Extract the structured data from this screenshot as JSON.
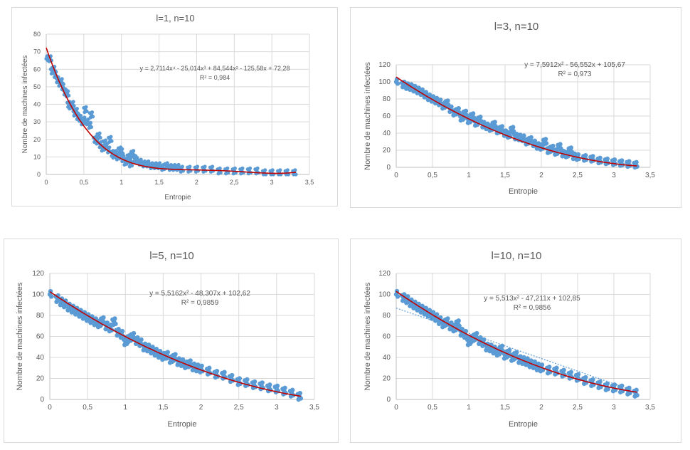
{
  "chart_data": [
    {
      "type": "scatter",
      "title": "l=1, n=10",
      "xlabel": "Entropie",
      "ylabel": "Nombre de machines infectées",
      "xlim": [
        0,
        3.5
      ],
      "ylim": [
        0,
        80
      ],
      "xticks": [
        "0",
        "0,5",
        "1",
        "1,5",
        "2",
        "2,5",
        "3",
        "3,5"
      ],
      "yticks": [
        "0",
        "10",
        "20",
        "30",
        "40",
        "50",
        "60",
        "70",
        "80"
      ],
      "trend_equation": "y = 2,7114x⁴ - 25,014x³ + 84,544x² - 125,58x + 72,28",
      "trend_r2": "R² = 0,984",
      "trend_coeffs": [
        72.28,
        -125.58,
        84.544,
        -25.014,
        2.7114
      ],
      "grid": true,
      "series": [
        {
          "x": [
            0,
            0.05,
            0.08,
            0.1,
            0.12,
            0.15,
            0.18,
            0.2,
            0.22,
            0.25,
            0.28,
            0.3,
            0.32,
            0.35,
            0.38,
            0.4,
            0.42,
            0.45,
            0.48,
            0.5,
            0.52,
            0.55,
            0.58,
            0.6,
            0.65,
            0.68,
            0.7,
            0.72,
            0.75,
            0.78,
            0.8,
            0.83,
            0.85,
            0.88,
            0.9,
            0.92,
            0.95,
            0.98,
            1.0,
            1.02,
            1.05,
            1.08,
            1.1,
            1.12,
            1.15,
            1.18,
            1.2,
            1.25,
            1.3,
            1.35,
            1.4,
            1.45,
            1.5,
            1.55,
            1.6,
            1.65,
            1.7,
            1.75,
            1.8,
            1.9,
            2.0,
            2.1,
            2.2,
            2.3,
            2.4,
            2.5,
            2.6,
            2.7,
            2.8,
            2.9,
            3.0,
            3.1,
            3.2,
            3.3
          ],
          "y": [
            66,
            66,
            59,
            60,
            57,
            54,
            52,
            53,
            50,
            47,
            46,
            40,
            39,
            40,
            35,
            36,
            33,
            32,
            30,
            31,
            37,
            30,
            28,
            34,
            20,
            19,
            22,
            17,
            15,
            18,
            16,
            14,
            20,
            12,
            11,
            12,
            10,
            14,
            13,
            9,
            7,
            8,
            10,
            6,
            12,
            9,
            8,
            7,
            6,
            6,
            5,
            5,
            5,
            4,
            5,
            4,
            4,
            4,
            3,
            3,
            3,
            3,
            3,
            2,
            2,
            2,
            2,
            2,
            2,
            1,
            1,
            1,
            1,
            1
          ]
        }
      ]
    },
    {
      "type": "scatter",
      "title": "l=3, n=10",
      "xlabel": "Entropie",
      "ylabel": "Nombre de machines infectées",
      "xlim": [
        0,
        3.5
      ],
      "ylim": [
        0,
        120
      ],
      "xticks": [
        "0",
        "0,5",
        "1",
        "1,5",
        "2",
        "2,5",
        "3",
        "3,5"
      ],
      "yticks": [
        "0",
        "20",
        "40",
        "60",
        "80",
        "100",
        "120"
      ],
      "trend_equation": "y = 7,5912x² - 56,552x + 105,67",
      "trend_r2": "R² = 0,973",
      "trend_coeffs": [
        105.67,
        -56.552,
        7.5912
      ],
      "grid": true,
      "series": [
        {
          "x": [
            0,
            0.1,
            0.15,
            0.2,
            0.25,
            0.3,
            0.35,
            0.4,
            0.45,
            0.5,
            0.55,
            0.6,
            0.65,
            0.7,
            0.75,
            0.8,
            0.85,
            0.9,
            0.95,
            1.0,
            1.05,
            1.1,
            1.15,
            1.2,
            1.25,
            1.3,
            1.35,
            1.4,
            1.45,
            1.5,
            1.55,
            1.6,
            1.65,
            1.7,
            1.75,
            1.8,
            1.85,
            1.9,
            1.95,
            2.0,
            2.05,
            2.1,
            2.15,
            2.2,
            2.25,
            2.3,
            2.35,
            2.4,
            2.45,
            2.5,
            2.6,
            2.7,
            2.8,
            2.9,
            3.0,
            3.1,
            3.2,
            3.3
          ],
          "y": [
            100,
            97,
            95,
            94,
            92,
            90,
            88,
            85,
            82,
            80,
            78,
            76,
            72,
            75,
            68,
            64,
            66,
            58,
            63,
            55,
            60,
            52,
            56,
            50,
            48,
            46,
            50,
            43,
            45,
            40,
            38,
            44,
            36,
            35,
            34,
            30,
            32,
            28,
            25,
            24,
            30,
            20,
            22,
            18,
            24,
            16,
            15,
            20,
            13,
            12,
            11,
            10,
            8,
            7,
            6,
            5,
            4,
            3
          ]
        }
      ]
    },
    {
      "type": "scatter",
      "title": "l=5, n=10",
      "xlabel": "Entropie",
      "ylabel": "Nombre de machines infectées",
      "xlim": [
        0,
        3.5
      ],
      "ylim": [
        0,
        120
      ],
      "xticks": [
        "0",
        "0,5",
        "1",
        "1,5",
        "2",
        "2,5",
        "3",
        "3,5"
      ],
      "yticks": [
        "0",
        "20",
        "40",
        "60",
        "80",
        "100",
        "120"
      ],
      "trend_equation": "y = 5,5162x² - 48,307x + 102,62",
      "trend_r2": "R² = 0,9859",
      "trend_coeffs": [
        102.62,
        -48.307,
        5.5162
      ],
      "grid": true,
      "series": [
        {
          "x": [
            0,
            0.1,
            0.15,
            0.2,
            0.25,
            0.3,
            0.35,
            0.4,
            0.45,
            0.5,
            0.55,
            0.6,
            0.65,
            0.7,
            0.75,
            0.8,
            0.85,
            0.9,
            0.95,
            1.0,
            1.05,
            1.1,
            1.15,
            1.2,
            1.25,
            1.3,
            1.35,
            1.4,
            1.45,
            1.5,
            1.55,
            1.6,
            1.65,
            1.7,
            1.75,
            1.8,
            1.85,
            1.9,
            1.95,
            2.0,
            2.1,
            2.2,
            2.3,
            2.4,
            2.5,
            2.6,
            2.7,
            2.8,
            2.9,
            3.0,
            3.1,
            3.2,
            3.3
          ],
          "y": [
            100,
            96,
            93,
            91,
            88,
            86,
            84,
            82,
            80,
            78,
            76,
            74,
            72,
            75,
            70,
            68,
            74,
            64,
            62,
            55,
            58,
            60,
            56,
            54,
            50,
            49,
            47,
            45,
            43,
            41,
            42,
            38,
            40,
            36,
            35,
            33,
            34,
            31,
            30,
            29,
            27,
            24,
            23,
            20,
            17,
            16,
            14,
            13,
            11,
            10,
            8,
            6,
            3
          ]
        }
      ]
    },
    {
      "type": "scatter",
      "title": "l=10, n=10",
      "xlabel": "Entropie",
      "ylabel": "Nombre de machines infectées",
      "xlim": [
        0,
        3.5
      ],
      "ylim": [
        0,
        120
      ],
      "xticks": [
        "0",
        "0,5",
        "1",
        "1,5",
        "2",
        "2,5",
        "3",
        "3,5"
      ],
      "yticks": [
        "0",
        "20",
        "40",
        "60",
        "80",
        "100",
        "120"
      ],
      "trend_equation": "y = 5,513x² - 47,211x + 102,85",
      "trend_r2": "R² = 0,9856",
      "trend_coeffs": [
        102.85,
        -47.211,
        5.513
      ],
      "linear_trend": [
        87,
        -24
      ],
      "grid": true,
      "series": [
        {
          "x": [
            0,
            0.1,
            0.15,
            0.2,
            0.25,
            0.3,
            0.35,
            0.4,
            0.45,
            0.5,
            0.55,
            0.6,
            0.65,
            0.7,
            0.75,
            0.8,
            0.85,
            0.9,
            0.95,
            1.0,
            1.05,
            1.1,
            1.15,
            1.2,
            1.25,
            1.3,
            1.35,
            1.4,
            1.45,
            1.5,
            1.55,
            1.6,
            1.65,
            1.7,
            1.75,
            1.8,
            1.85,
            1.9,
            1.95,
            2.0,
            2.1,
            2.2,
            2.3,
            2.4,
            2.5,
            2.6,
            2.7,
            2.8,
            2.9,
            3.0,
            3.1,
            3.2,
            3.3
          ],
          "y": [
            100,
            97,
            95,
            92,
            90,
            88,
            86,
            84,
            82,
            80,
            78,
            75,
            72,
            74,
            70,
            68,
            72,
            64,
            62,
            55,
            58,
            60,
            56,
            54,
            50,
            49,
            47,
            45,
            48,
            42,
            44,
            40,
            42,
            38,
            37,
            36,
            34,
            33,
            31,
            30,
            28,
            27,
            25,
            23,
            21,
            18,
            16,
            14,
            12,
            11,
            10,
            8,
            6
          ]
        }
      ]
    }
  ]
}
